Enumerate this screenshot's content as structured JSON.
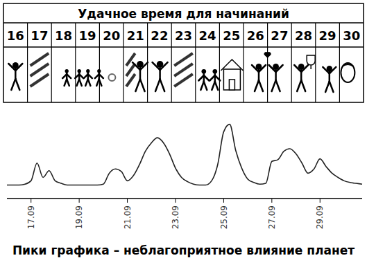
{
  "table": {
    "title": "Удачное время для начинаний",
    "days": [
      16,
      17,
      18,
      19,
      20,
      21,
      22,
      23,
      24,
      25,
      26,
      27,
      28,
      29,
      30
    ]
  },
  "chart_data": {
    "type": "line",
    "caption": "Пики графика – неблагоприятное влияние планет",
    "categories": [
      null,
      null,
      null,
      null,
      "17.09",
      null,
      null,
      null,
      null,
      null,
      null,
      null,
      "19.09",
      null,
      null,
      null,
      null,
      null,
      null,
      null,
      "21.09",
      null,
      null,
      null,
      null,
      null,
      null,
      null,
      "23.09",
      null,
      null,
      null,
      null,
      null,
      null,
      null,
      "25.09",
      null,
      null,
      null,
      null,
      null,
      null,
      null,
      "27.09",
      null,
      null,
      null,
      null,
      null,
      null,
      null,
      "29.09",
      null,
      null,
      null,
      null,
      null,
      null,
      null
    ],
    "values": [
      16,
      16,
      16,
      17,
      21,
      42,
      25,
      33,
      21,
      18,
      16,
      16,
      16,
      16,
      16,
      16,
      17,
      30,
      35,
      32,
      21,
      27,
      40,
      56,
      66,
      72,
      66,
      53,
      36,
      25,
      20,
      17,
      16,
      16,
      21,
      40,
      79,
      88,
      57,
      36,
      23,
      19,
      17,
      18,
      44,
      46,
      56,
      59,
      53,
      42,
      30,
      35,
      47,
      38,
      30,
      25,
      21,
      19,
      18,
      17
    ],
    "color": "#222222",
    "ylim": [
      0,
      100
    ],
    "tick_labels": "x"
  }
}
